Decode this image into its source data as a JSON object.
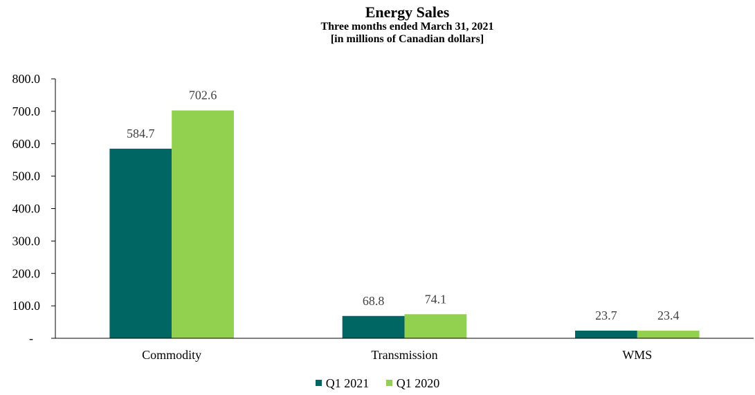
{
  "chart_data": {
    "type": "bar",
    "title": "Energy Sales",
    "subtitle_lines": [
      "Three months ended March 31, 2021",
      "[in millions of Canadian dollars]"
    ],
    "categories": [
      "Commodity",
      "Transmission",
      "WMS"
    ],
    "series": [
      {
        "name": "Q1 2021",
        "color": "#006663",
        "values": [
          584.7,
          68.8,
          23.7
        ]
      },
      {
        "name": "Q1 2020",
        "color": "#92D050",
        "values": [
          702.6,
          74.1,
          23.4
        ]
      }
    ],
    "data_labels": [
      [
        "584.7",
        "68.8",
        "23.7"
      ],
      [
        "702.6",
        "74.1",
        "23.4"
      ]
    ],
    "ylim": [
      0,
      800
    ],
    "yticks": [
      0,
      100,
      200,
      300,
      400,
      500,
      600,
      700,
      800
    ],
    "ytick_labels": [
      "-",
      "100.0",
      "200.0",
      "300.0",
      "400.0",
      "500.0",
      "600.0",
      "700.0",
      "800.0"
    ],
    "xlabel": "",
    "ylabel": "",
    "grid": false,
    "legend_position": "bottom-center"
  }
}
